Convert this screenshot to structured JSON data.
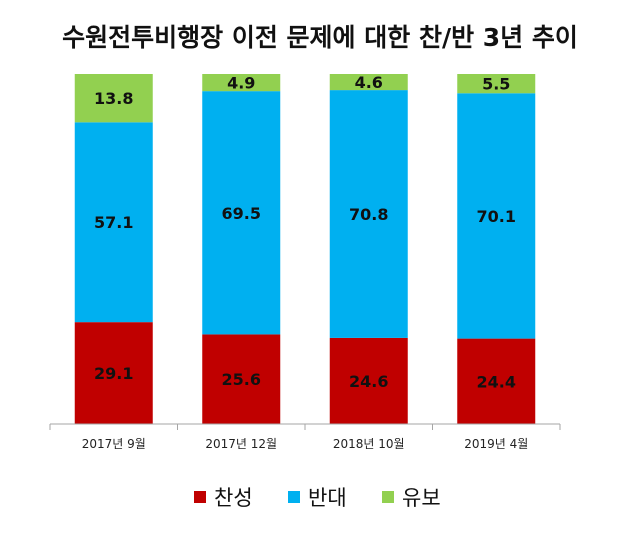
{
  "chart_data": {
    "type": "bar",
    "stacked": true,
    "title": "수원전투비행장 이전 문제에 대한 찬/반 3년 추이",
    "categories": [
      "2017년 9월",
      "2017년 12월",
      "2018년 10월",
      "2019년 4월"
    ],
    "series": [
      {
        "name": "찬성",
        "color": "#C00000",
        "values": [
          29.1,
          25.6,
          24.6,
          24.4
        ]
      },
      {
        "name": "반대",
        "color": "#00B0F0",
        "values": [
          57.1,
          69.5,
          70.8,
          70.1
        ]
      },
      {
        "name": "유보",
        "color": "#92D050",
        "values": [
          13.8,
          4.9,
          4.6,
          5.5
        ]
      }
    ],
    "ylim": [
      0,
      100
    ],
    "grid": false,
    "legend_position": "bottom"
  }
}
